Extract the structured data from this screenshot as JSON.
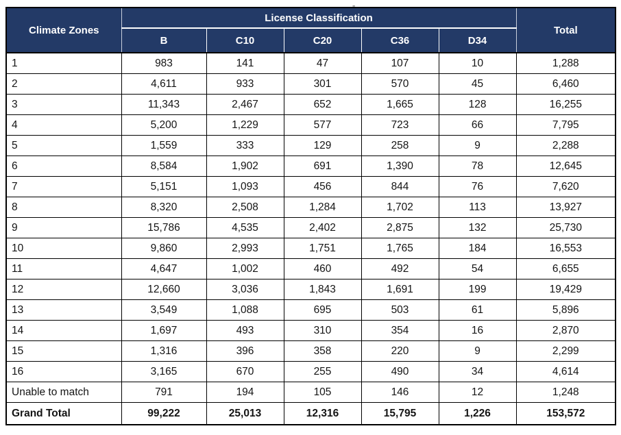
{
  "decoration": {
    "top_dash": "-"
  },
  "colors": {
    "header_bg": "#233A67",
    "header_text": "#FFFFFF",
    "grid_border": "#000000",
    "header_divider": "#FFFFFF",
    "page_bg": "#FFFFFF"
  },
  "chart_data": {
    "type": "table",
    "title": "",
    "corner_header": "Climate Zones",
    "group_header": "License Classification",
    "columns": [
      "B",
      "C10",
      "C20",
      "C36",
      "D34"
    ],
    "total_header": "Total",
    "rows": [
      {
        "zone": "1",
        "values": [
          983,
          141,
          47,
          107,
          10
        ],
        "total": 1288
      },
      {
        "zone": "2",
        "values": [
          4611,
          933,
          301,
          570,
          45
        ],
        "total": 6460
      },
      {
        "zone": "3",
        "values": [
          11343,
          2467,
          652,
          1665,
          128
        ],
        "total": 16255
      },
      {
        "zone": "4",
        "values": [
          5200,
          1229,
          577,
          723,
          66
        ],
        "total": 7795
      },
      {
        "zone": "5",
        "values": [
          1559,
          333,
          129,
          258,
          9
        ],
        "total": 2288
      },
      {
        "zone": "6",
        "values": [
          8584,
          1902,
          691,
          1390,
          78
        ],
        "total": 12645
      },
      {
        "zone": "7",
        "values": [
          5151,
          1093,
          456,
          844,
          76
        ],
        "total": 7620
      },
      {
        "zone": "8",
        "values": [
          8320,
          2508,
          1284,
          1702,
          113
        ],
        "total": 13927
      },
      {
        "zone": "9",
        "values": [
          15786,
          4535,
          2402,
          2875,
          132
        ],
        "total": 25730
      },
      {
        "zone": "10",
        "values": [
          9860,
          2993,
          1751,
          1765,
          184
        ],
        "total": 16553
      },
      {
        "zone": "11",
        "values": [
          4647,
          1002,
          460,
          492,
          54
        ],
        "total": 6655
      },
      {
        "zone": "12",
        "values": [
          12660,
          3036,
          1843,
          1691,
          199
        ],
        "total": 19429
      },
      {
        "zone": "13",
        "values": [
          3549,
          1088,
          695,
          503,
          61
        ],
        "total": 5896
      },
      {
        "zone": "14",
        "values": [
          1697,
          493,
          310,
          354,
          16
        ],
        "total": 2870
      },
      {
        "zone": "15",
        "values": [
          1316,
          396,
          358,
          220,
          9
        ],
        "total": 2299
      },
      {
        "zone": "16",
        "values": [
          3165,
          670,
          255,
          490,
          34
        ],
        "total": 4614
      },
      {
        "zone": "Unable to match",
        "values": [
          791,
          194,
          105,
          146,
          12
        ],
        "total": 1248
      }
    ],
    "grand_total": {
      "label": "Grand Total",
      "values": [
        99222,
        25013,
        12316,
        15795,
        1226
      ],
      "total": 153572
    }
  }
}
